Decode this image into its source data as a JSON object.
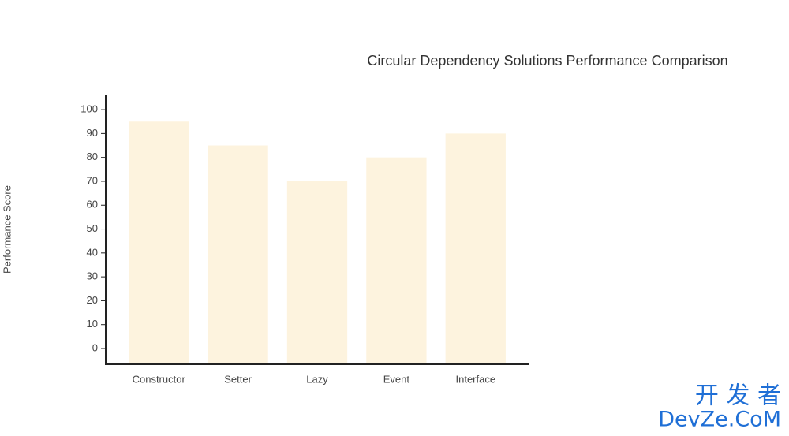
{
  "chart_data": {
    "type": "bar",
    "title": "Circular Dependency Solutions Performance Comparison",
    "y_label": "Performance Score",
    "categories": [
      "Constructor",
      "Setter",
      "Lazy",
      "Event",
      "Interface"
    ],
    "values": [
      95,
      85,
      70,
      80,
      90
    ],
    "color": "#fdf3de",
    "ylim": [
      -6.6,
      106.3
    ],
    "yticks": [
      0,
      10,
      20,
      30,
      40,
      50,
      60,
      70,
      80,
      90,
      100
    ],
    "grid": false
  },
  "watermark": {
    "top": "开 发 者",
    "bottom": "DevZe.CoM"
  }
}
